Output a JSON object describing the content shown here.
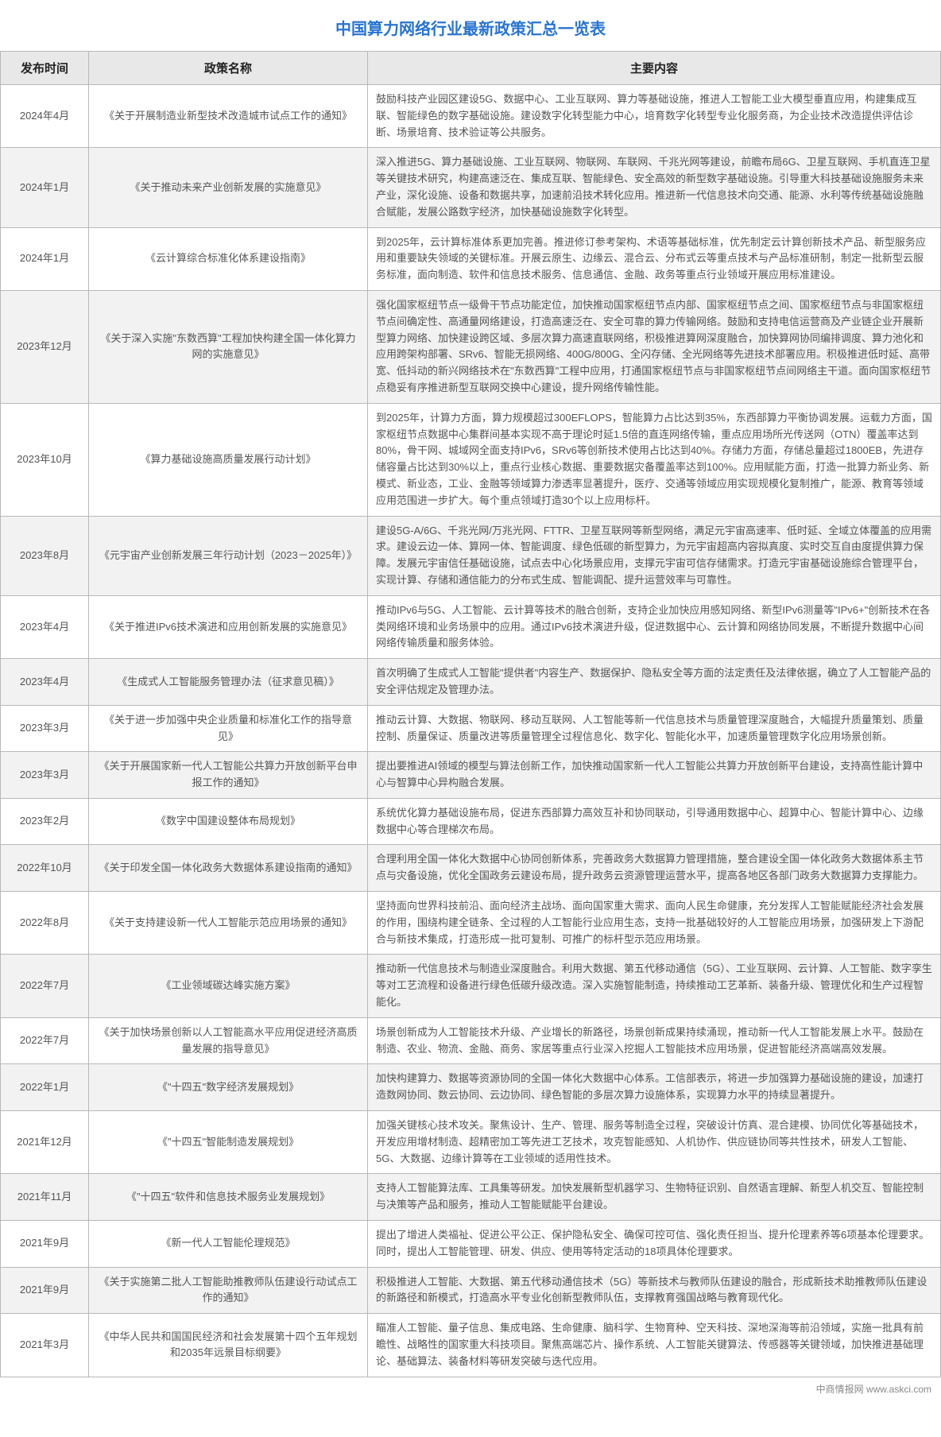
{
  "title": "中国算力网络行业最新政策汇总一览表",
  "headers": {
    "date": "发布时间",
    "name": "政策名称",
    "content": "主要内容"
  },
  "rows": [
    {
      "date": "2024年4月",
      "name": "《关于开展制造业新型技术改造城市试点工作的通知》",
      "content": "鼓励科技产业园区建设5G、数据中心、工业互联网、算力等基础设施，推进人工智能工业大模型垂直应用，构建集成互联、智能绿色的数字基础设施。建设数字化转型能力中心，培育数字化转型专业化服务商，为企业技术改造提供评估诊断、场景培育、技术验证等公共服务。"
    },
    {
      "date": "2024年1月",
      "name": "《关于推动未来产业创新发展的实施意见》",
      "content": "深入推进5G、算力基础设施、工业互联网、物联网、车联网、千兆光网等建设，前瞻布局6G、卫星互联网、手机直连卫星等关键技术研究，构建高速泛在、集成互联、智能绿色、安全高效的新型数字基础设施。引导重大科技基础设施服务未来产业，深化设施、设备和数据共享，加速前沿技术转化应用。推进新一代信息技术向交通、能源、水利等传统基础设施融合赋能，发展公路数字经济，加快基础设施数字化转型。"
    },
    {
      "date": "2024年1月",
      "name": "《云计算综合标准化体系建设指南》",
      "content": "到2025年，云计算标准体系更加完善。推进修订参考架构、术语等基础标准，优先制定云计算创新技术产品、新型服务应用和重要缺失领域的关键标准。开展云原生、边缘云、混合云、分布式云等重点技术与产品标准研制，制定一批新型云服务标准，面向制造、软件和信息技术服务、信息通信、金融、政务等重点行业领域开展应用标准建设。"
    },
    {
      "date": "2023年12月",
      "name": "《关于深入实施\"东数西算\"工程加快构建全国一体化算力网的实施意见》",
      "content": "强化国家枢纽节点一级骨干节点功能定位，加快推动国家枢纽节点内部、国家枢纽节点之间、国家枢纽节点与非国家枢纽节点间确定性、高通量网络建设，打造高速泛在、安全可靠的算力传输网络。鼓励和支持电信运营商及产业链企业开展新型算力网络、加快建设跨区域、多层次算力高速直联网络，积极推进算网深度融合，加快算网协同编排调度、算力池化和应用跨架构部署、SRv6、智能无损网络、400G/800G、全闪存储、全光网络等先进技术部署应用。积极推进低时延、高带宽、低抖动的新兴网络技术在\"东数西算\"工程中应用，打通国家枢纽节点与非国家枢纽节点间网络主干道。面向国家枢纽节点稳妥有序推进新型互联网交换中心建设，提升网络传输性能。"
    },
    {
      "date": "2023年10月",
      "name": "《算力基础设施高质量发展行动计划》",
      "content": "到2025年，计算力方面，算力规模超过300EFLOPS，智能算力占比达到35%，东西部算力平衡协调发展。运载力方面，国家枢纽节点数据中心集群间基本实现不高于理论时延1.5倍的直连网络传输，重点应用场所光传送网（OTN）覆盖率达到80%，骨干网、城域网全面支持IPv6，SRv6等创新技术使用占比达到40%。存储力方面，存储总量超过1800EB，先进存储容量占比达到30%以上，重点行业核心数据、重要数据灾备覆盖率达到100%。应用赋能方面，打造一批算力新业务、新模式、新业态，工业、金融等领域算力渗透率显著提升，医疗、交通等领域应用实现规模化复制推广，能源、教育等领域应用范围进一步扩大。每个重点领域打造30个以上应用标杆。"
    },
    {
      "date": "2023年8月",
      "name": "《元宇宙产业创新发展三年行动计划（2023－2025年）》",
      "content": "建设5G-A/6G、千兆光网/万兆光网、FTTR、卫星互联网等新型网络，满足元宇宙高速率、低时延、全域立体覆盖的应用需求。建设云边一体、算网一体、智能调度、绿色低碳的新型算力，为元宇宙超高内容拟真度、实时交互自由度提供算力保障。发展元宇宙信任基础设施，试点去中心化场景应用，支撑元宇宙可信存储需求。打造元宇宙基础设施综合管理平台，实现计算、存储和通信能力的分布式生成、智能调配、提升运营效率与可靠性。"
    },
    {
      "date": "2023年4月",
      "name": "《关于推进IPv6技术演进和应用创新发展的实施意见》",
      "content": "推动IPv6与5G、人工智能、云计算等技术的融合创新，支持企业加快应用感知网络、新型IPv6测量等\"IPv6+\"创新技术在各类网络环境和业务场景中的应用。通过IPv6技术演进升级，促进数据中心、云计算和网络协同发展，不断提升数据中心间网络传输质量和服务体验。"
    },
    {
      "date": "2023年4月",
      "name": "《生成式人工智能服务管理办法（征求意见稿）》",
      "content": "首次明确了生成式人工智能\"提供者\"内容生产、数据保护、隐私安全等方面的法定责任及法律依据，确立了人工智能产品的安全评估规定及管理办法。"
    },
    {
      "date": "2023年3月",
      "name": "《关于进一步加强中央企业质量和标准化工作的指导意见》",
      "content": "推动云计算、大数据、物联网、移动互联网、人工智能等新一代信息技术与质量管理深度融合，大幅提升质量策划、质量控制、质量保证、质量改进等质量管理全过程信息化、数字化、智能化水平，加速质量管理数字化应用场景创新。"
    },
    {
      "date": "2023年3月",
      "name": "《关于开展国家新一代人工智能公共算力开放创新平台申报工作的通知》",
      "content": "提出要推进AI领域的模型与算法创新工作，加快推动国家新一代人工智能公共算力开放创新平台建设，支持高性能计算中心与智算中心异构融合发展。"
    },
    {
      "date": "2023年2月",
      "name": "《数字中国建设整体布局规划》",
      "content": "系统优化算力基础设施布局，促进东西部算力高效互补和协同联动，引导通用数据中心、超算中心、智能计算中心、边缘数据中心等合理梯次布局。"
    },
    {
      "date": "2022年10月",
      "name": "《关于印发全国一体化政务大数据体系建设指南的通知》",
      "content": "合理利用全国一体化大数据中心协同创新体系，完善政务大数据算力管理措施，整合建设全国一体化政务大数据体系主节点与灾备设施，优化全国政务云建设布局，提升政务云资源管理运营水平，提高各地区各部门政务大数据算力支撑能力。"
    },
    {
      "date": "2022年8月",
      "name": "《关于支持建设新一代人工智能示范应用场景的通知》",
      "content": "坚持面向世界科技前沿、面向经济主战场、面向国家重大需求、面向人民生命健康，充分发挥人工智能赋能经济社会发展的作用，围绕构建全链条、全过程的人工智能行业应用生态，支持一批基础较好的人工智能应用场景，加强研发上下游配合与新技术集成，打造形成一批可复制、可推广的标杆型示范应用场景。"
    },
    {
      "date": "2022年7月",
      "name": "《工业领域碳达峰实施方案》",
      "content": "推动新一代信息技术与制造业深度融合。利用大数据、第五代移动通信（5G）、工业互联网、云计算、人工智能、数字孪生等对工艺流程和设备进行绿色低碳升级改造。深入实施智能制造，持续推动工艺革新、装备升级、管理优化和生产过程智能化。"
    },
    {
      "date": "2022年7月",
      "name": "《关于加快场景创新以人工智能高水平应用促进经济高质量发展的指导意见》",
      "content": "场景创新成为人工智能技术升级、产业增长的新路径，场景创新成果持续涌现，推动新一代人工智能发展上水平。鼓励在制造、农业、物流、金融、商务、家居等重点行业深入挖掘人工智能技术应用场景，促进智能经济高端高效发展。"
    },
    {
      "date": "2022年1月",
      "name": "《\"十四五\"数字经济发展规划》",
      "content": "加快构建算力、数据等资源协同的全国一体化大数据中心体系。工信部表示，将进一步加强算力基础设施的建设，加速打造数网协同、数云协同、云边协同、绿色智能的多层次算力设施体系，实现算力水平的持续显著提升。"
    },
    {
      "date": "2021年12月",
      "name": "《\"十四五\"智能制造发展规划》",
      "content": "加强关键核心技术攻关。聚焦设计、生产、管理、服务等制造全过程，突破设计仿真、混合建模、协同优化等基础技术，开发应用增材制造、超精密加工等先进工艺技术，攻克智能感知、人机协作、供应链协同等共性技术，研发人工智能、5G、大数据、边缘计算等在工业领域的适用性技术。"
    },
    {
      "date": "2021年11月",
      "name": "《\"十四五\"软件和信息技术服务业发展规划》",
      "content": "支持人工智能算法库、工具集等研发。加快发展新型机器学习、生物特征识别、自然语言理解、新型人机交互、智能控制与决策等产品和服务，推动人工智能赋能平台建设。"
    },
    {
      "date": "2021年9月",
      "name": "《新一代人工智能伦理规范》",
      "content": "提出了增进人类福祉、促进公平公正、保护隐私安全、确保可控可信、强化责任担当、提升伦理素养等6项基本伦理要求。同时，提出人工智能管理、研发、供应、使用等特定活动的18项具体伦理要求。"
    },
    {
      "date": "2021年9月",
      "name": "《关于实施第二批人工智能助推教师队伍建设行动试点工作的通知》",
      "content": "积极推进人工智能、大数据、第五代移动通信技术（5G）等新技术与教师队伍建设的融合，形成新技术助推教师队伍建设的新路径和新模式，打造高水平专业化创新型教师队伍，支撑教育强国战略与教育现代化。"
    },
    {
      "date": "2021年3月",
      "name": "《中华人民共和国国民经济和社会发展第十四个五年规划和2035年远景目标纲要》",
      "content": "瞄准人工智能、量子信息、集成电路、生命健康、脑科学、生物育种、空天科技、深地深海等前沿领域，实施一批具有前瞻性、战略性的国家重大科技项目。聚焦高端芯片、操作系统、人工智能关键算法、传感器等关键领域，加快推进基础理论、基础算法、装备材料等研发突破与迭代应用。"
    }
  ],
  "footer": "中商情报网 www.askci.com"
}
